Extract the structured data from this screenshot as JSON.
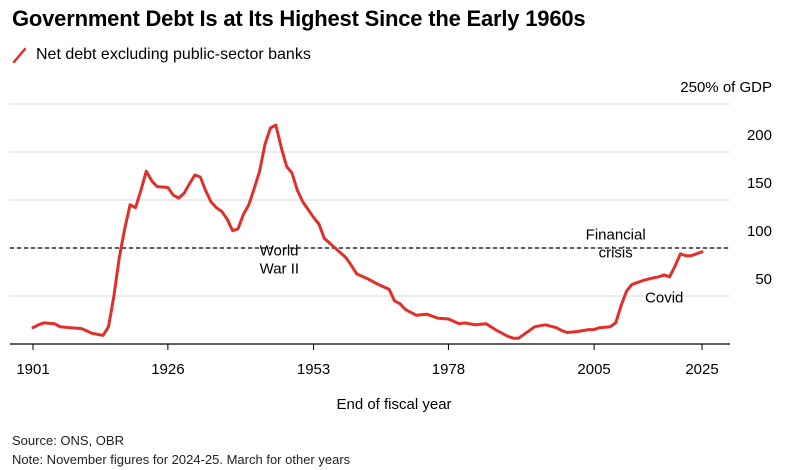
{
  "title": "Government Debt Is at Its Highest Since the Early 1960s",
  "legend": {
    "label": "Net debt excluding public-sector banks",
    "color": "#e0302b"
  },
  "source": "Source: ONS, OBR",
  "note": "Note: November figures for 2024-25. March for other years",
  "chart_data": {
    "type": "line",
    "title": "Government Debt Is at Its Highest Since the Early 1960s",
    "xlabel": "End of fiscal year",
    "ylabel": "",
    "y_unit_label": "250% of GDP",
    "xlim": [
      1901,
      2025
    ],
    "ylim": [
      0,
      250
    ],
    "x_ticks": [
      1901,
      1926,
      1953,
      1978,
      2005,
      2025
    ],
    "y_ticks": [
      {
        "value": 50,
        "label": "50"
      },
      {
        "value": 100,
        "label": "100"
      },
      {
        "value": 150,
        "label": "150"
      },
      {
        "value": 200,
        "label": "200"
      },
      {
        "value": 250,
        "label": "250% of GDP"
      }
    ],
    "grid": true,
    "reference_line": {
      "value": 100,
      "style": "dashed"
    },
    "annotations": [
      {
        "lines": [
          "World",
          "War II"
        ],
        "x": 1943,
        "y": 92,
        "anchor": "start"
      },
      {
        "lines": [
          "Financial",
          "crisis"
        ],
        "x": 2009,
        "y": 109,
        "anchor": "middle"
      },
      {
        "lines": [
          "Covid"
        ],
        "x": 2018,
        "y": 43,
        "anchor": "middle"
      }
    ],
    "series": [
      {
        "name": "Net debt excluding public-sector banks",
        "color": "#e0302b",
        "points": [
          [
            1901,
            17
          ],
          [
            1902,
            20
          ],
          [
            1903,
            22
          ],
          [
            1905,
            21
          ],
          [
            1906,
            18
          ],
          [
            1908,
            17
          ],
          [
            1910,
            16
          ],
          [
            1912,
            11
          ],
          [
            1914,
            9
          ],
          [
            1915,
            18
          ],
          [
            1916,
            50
          ],
          [
            1917,
            90
          ],
          [
            1918,
            120
          ],
          [
            1919,
            145
          ],
          [
            1920,
            142
          ],
          [
            1921,
            160
          ],
          [
            1922,
            180
          ],
          [
            1923,
            170
          ],
          [
            1924,
            164
          ],
          [
            1926,
            163
          ],
          [
            1927,
            155
          ],
          [
            1928,
            152
          ],
          [
            1929,
            157
          ],
          [
            1930,
            167
          ],
          [
            1931,
            176
          ],
          [
            1932,
            174
          ],
          [
            1933,
            160
          ],
          [
            1934,
            148
          ],
          [
            1935,
            142
          ],
          [
            1936,
            138
          ],
          [
            1937,
            130
          ],
          [
            1938,
            118
          ],
          [
            1939,
            120
          ],
          [
            1940,
            135
          ],
          [
            1941,
            145
          ],
          [
            1942,
            162
          ],
          [
            1943,
            180
          ],
          [
            1944,
            208
          ],
          [
            1945,
            225
          ],
          [
            1946,
            228
          ],
          [
            1947,
            205
          ],
          [
            1948,
            185
          ],
          [
            1949,
            178
          ],
          [
            1950,
            160
          ],
          [
            1951,
            148
          ],
          [
            1952,
            140
          ],
          [
            1953,
            132
          ],
          [
            1954,
            125
          ],
          [
            1955,
            110
          ],
          [
            1956,
            105
          ],
          [
            1957,
            100
          ],
          [
            1958,
            95
          ],
          [
            1959,
            90
          ],
          [
            1960,
            82
          ],
          [
            1961,
            73
          ],
          [
            1963,
            68
          ],
          [
            1965,
            62
          ],
          [
            1967,
            57
          ],
          [
            1968,
            45
          ],
          [
            1969,
            42
          ],
          [
            1970,
            36
          ],
          [
            1972,
            30
          ],
          [
            1974,
            31
          ],
          [
            1976,
            27
          ],
          [
            1978,
            26
          ],
          [
            1980,
            21
          ],
          [
            1981,
            22
          ],
          [
            1983,
            20
          ],
          [
            1985,
            21
          ],
          [
            1987,
            14
          ],
          [
            1989,
            8
          ],
          [
            1990,
            6
          ],
          [
            1991,
            6
          ],
          [
            1992,
            10
          ],
          [
            1994,
            18
          ],
          [
            1996,
            20
          ],
          [
            1998,
            17
          ],
          [
            1999,
            14
          ],
          [
            2000,
            12
          ],
          [
            2002,
            13
          ],
          [
            2004,
            15
          ],
          [
            2005,
            15
          ],
          [
            2006,
            17
          ],
          [
            2008,
            18
          ],
          [
            2009,
            22
          ],
          [
            2010,
            40
          ],
          [
            2011,
            55
          ],
          [
            2012,
            62
          ],
          [
            2014,
            66
          ],
          [
            2016,
            69
          ],
          [
            2017,
            70
          ],
          [
            2018,
            72
          ],
          [
            2019,
            70
          ],
          [
            2020,
            81
          ],
          [
            2021,
            94
          ],
          [
            2022,
            92
          ],
          [
            2023,
            92
          ],
          [
            2024,
            94
          ],
          [
            2025,
            96
          ]
        ]
      }
    ]
  }
}
